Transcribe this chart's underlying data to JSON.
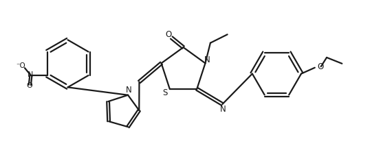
{
  "background_color": "#ffffff",
  "line_color": "#1a1a1a",
  "line_width": 1.6,
  "figsize": [
    5.38,
    2.35
  ],
  "dpi": 100,
  "xlim": [
    0,
    10.8
  ],
  "ylim": [
    0,
    4.7
  ]
}
